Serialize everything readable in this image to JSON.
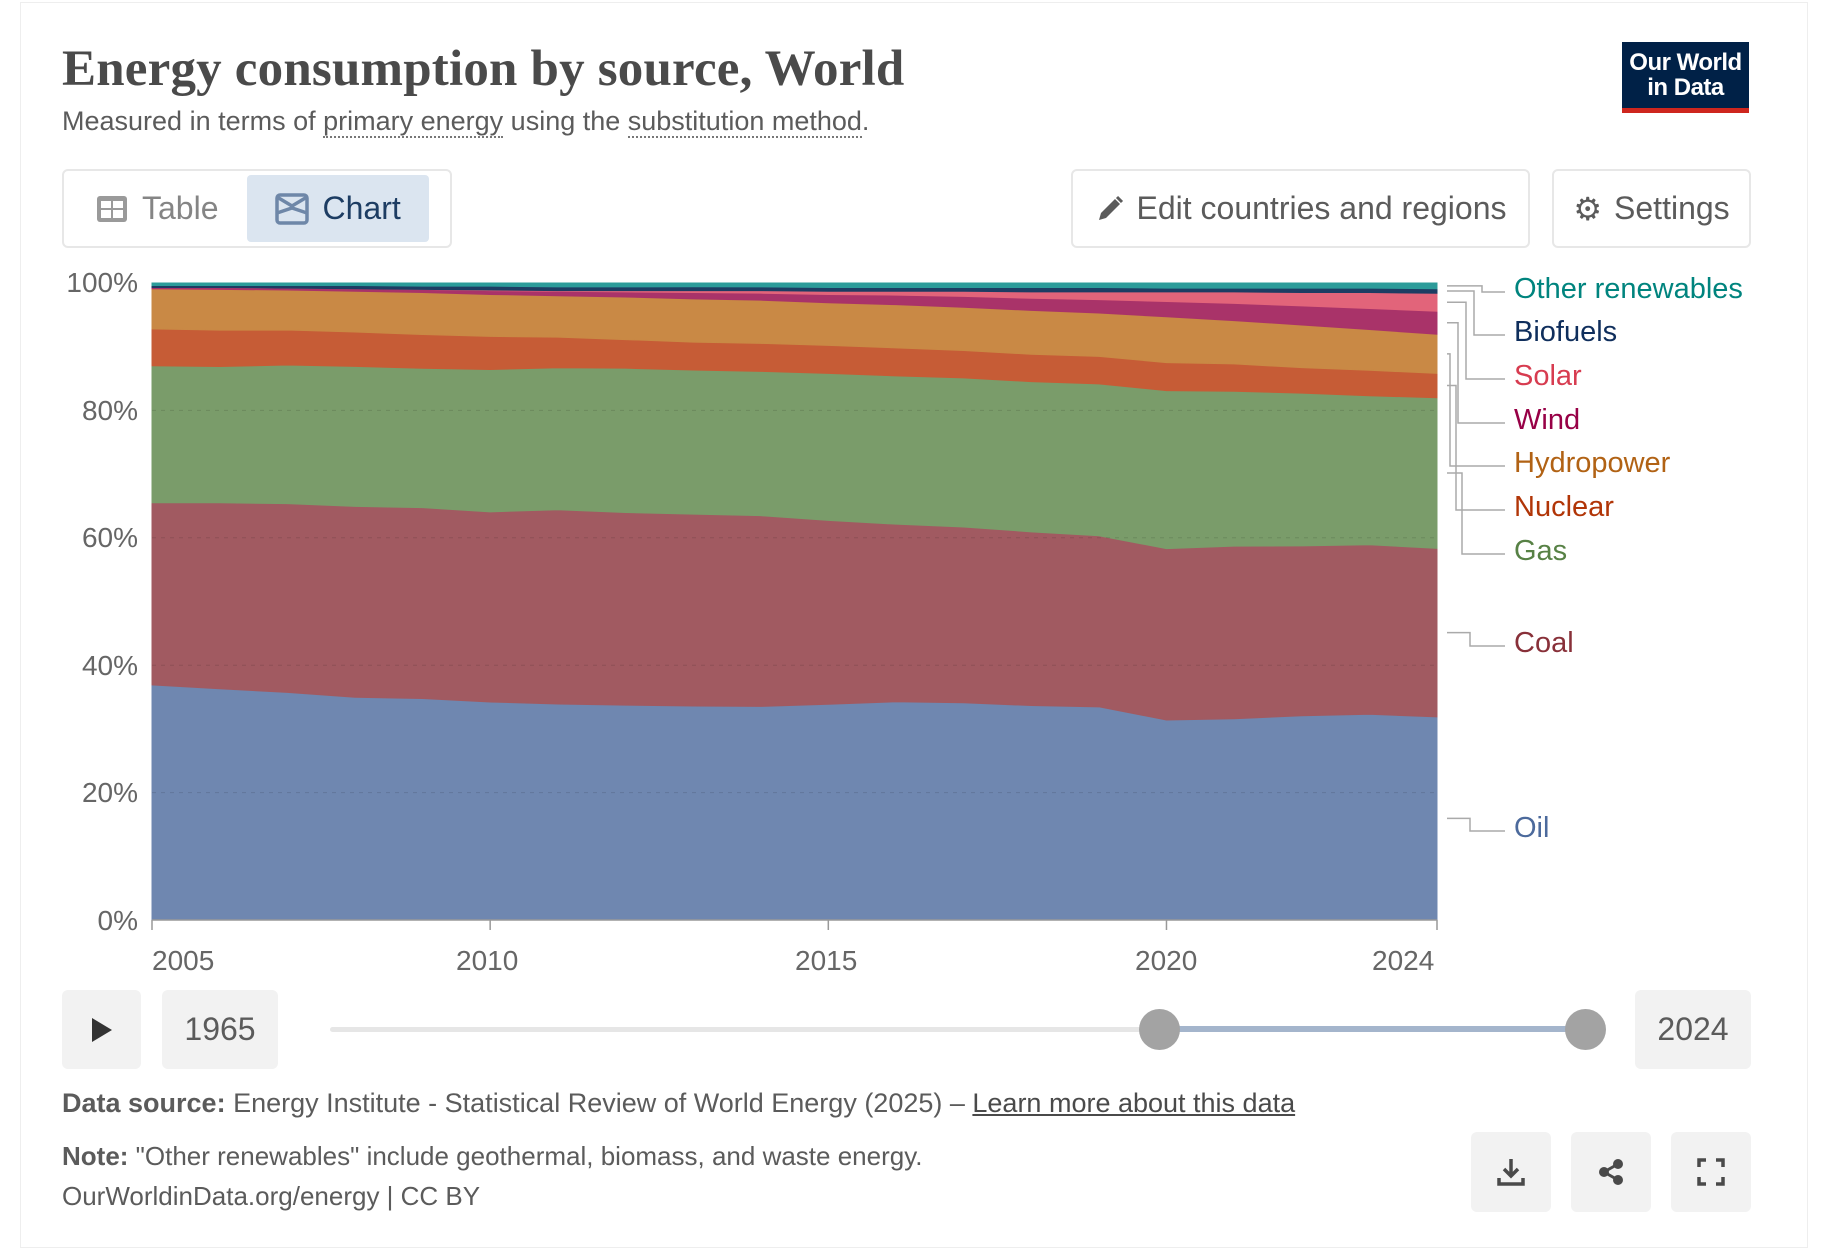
{
  "header": {
    "title": "Energy consumption by source, World",
    "subtitle_pre": "Measured in terms of ",
    "subtitle_link1": "primary energy",
    "subtitle_mid": " using the ",
    "subtitle_link2": "substitution method",
    "subtitle_post": ".",
    "logo_line1": "Our World",
    "logo_line2": "in Data"
  },
  "tabs": [
    {
      "label": "Table",
      "icon": "table-icon"
    },
    {
      "label": "Chart",
      "icon": "chart-icon",
      "active": true
    }
  ],
  "toolbar": {
    "edit_label": "Edit countries and regions",
    "settings_label": "Settings"
  },
  "chart_data": {
    "type": "area",
    "stacked": "relative",
    "title": "Energy consumption by source, World",
    "x": [
      2005,
      2006,
      2007,
      2008,
      2009,
      2010,
      2011,
      2012,
      2013,
      2014,
      2015,
      2016,
      2017,
      2018,
      2019,
      2020,
      2021,
      2022,
      2023,
      2024
    ],
    "x_ticks": [
      "2005",
      "2010",
      "2015",
      "2020",
      "2024"
    ],
    "y_ticks": [
      "0%",
      "20%",
      "40%",
      "60%",
      "80%",
      "100%"
    ],
    "ylim": [
      0,
      100
    ],
    "grid": true,
    "legend_placement": "right",
    "series": [
      {
        "name": "Oil",
        "color": "#6f87b0",
        "label_color": "#4c6a9c",
        "values": [
          36.9,
          36.3,
          35.8,
          35.0,
          34.8,
          34.3,
          33.9,
          33.8,
          33.7,
          33.6,
          33.9,
          34.3,
          34.1,
          33.7,
          33.4,
          31.4,
          31.6,
          32.1,
          32.3,
          31.7
        ]
      },
      {
        "name": "Coal",
        "color": "#a15a61",
        "label_color": "#883039",
        "values": [
          28.6,
          29.2,
          29.7,
          30.0,
          30.0,
          29.9,
          30.5,
          30.3,
          30.2,
          30.0,
          28.9,
          27.9,
          27.6,
          27.3,
          26.8,
          26.9,
          27.1,
          26.7,
          26.6,
          26.3
        ]
      },
      {
        "name": "Gas",
        "color": "#7a9c6a",
        "label_color": "#578145",
        "values": [
          21.5,
          21.4,
          21.8,
          22.0,
          21.9,
          22.4,
          22.3,
          22.7,
          22.7,
          22.7,
          23.1,
          23.3,
          23.4,
          23.6,
          23.8,
          24.8,
          24.3,
          24.0,
          23.4,
          23.5
        ]
      },
      {
        "name": "Nuclear",
        "color": "#c65c36",
        "label_color": "#b13507",
        "values": [
          5.8,
          5.7,
          5.5,
          5.4,
          5.3,
          5.2,
          4.8,
          4.5,
          4.4,
          4.4,
          4.4,
          4.4,
          4.3,
          4.3,
          4.3,
          4.4,
          4.3,
          4.0,
          4.0,
          3.8
        ]
      },
      {
        "name": "Hydropower",
        "color": "#c98945",
        "label_color": "#b16214",
        "values": [
          6.3,
          6.4,
          6.3,
          6.4,
          6.6,
          6.6,
          6.5,
          6.7,
          6.8,
          6.8,
          6.7,
          6.8,
          6.8,
          6.9,
          6.8,
          7.2,
          6.8,
          6.7,
          6.4,
          6.1
        ]
      },
      {
        "name": "Wind",
        "color": "#a93369",
        "label_color": "#970046",
        "values": [
          0.2,
          0.3,
          0.3,
          0.4,
          0.5,
          0.6,
          0.7,
          0.8,
          1.0,
          1.1,
          1.3,
          1.5,
          1.7,
          1.9,
          2.1,
          2.4,
          2.7,
          3.0,
          3.3,
          3.6
        ]
      },
      {
        "name": "Solar",
        "color": "#e2647a",
        "label_color": "#d73c50",
        "values": [
          0.0,
          0.0,
          0.0,
          0.0,
          0.0,
          0.1,
          0.1,
          0.2,
          0.3,
          0.4,
          0.5,
          0.6,
          0.8,
          1.0,
          1.2,
          1.5,
          1.8,
          2.1,
          2.5,
          2.8
        ]
      },
      {
        "name": "Biofuels",
        "color": "#1d3d63",
        "label_color": "#0f2e5c",
        "values": [
          0.3,
          0.3,
          0.4,
          0.5,
          0.5,
          0.6,
          0.6,
          0.6,
          0.6,
          0.6,
          0.6,
          0.6,
          0.6,
          0.7,
          0.7,
          0.6,
          0.6,
          0.7,
          0.7,
          0.7
        ]
      },
      {
        "name": "Other renewables",
        "color": "#2c9c9a",
        "label_color": "#00847e",
        "values": [
          0.4,
          0.4,
          0.4,
          0.4,
          0.5,
          0.5,
          0.6,
          0.6,
          0.6,
          0.6,
          0.7,
          0.7,
          0.7,
          0.7,
          0.7,
          0.8,
          0.8,
          0.8,
          0.8,
          0.9
        ]
      }
    ]
  },
  "timeline": {
    "start_year": "1965",
    "end_year": "2024",
    "range_start_fraction": 0.66,
    "range_end_fraction": 1.0
  },
  "footer": {
    "source_label": "Data source:",
    "source_text": " Energy Institute - Statistical Review of World Energy (2025) – ",
    "source_link": "Learn more about this data",
    "note_label": "Note:",
    "note_text": " \"Other renewables\" include geothermal, biomass, and waste energy.",
    "url_text": "OurWorldinData.org/energy | CC BY"
  }
}
